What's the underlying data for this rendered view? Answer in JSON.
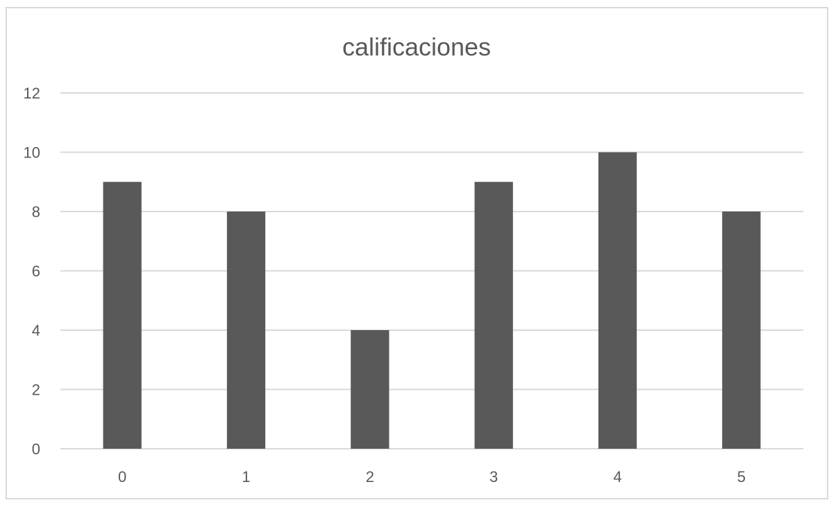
{
  "chart_data": {
    "type": "bar",
    "title": "calificaciones",
    "categories": [
      "0",
      "1",
      "2",
      "3",
      "4",
      "5"
    ],
    "values": [
      9,
      8,
      4,
      9,
      10,
      8
    ],
    "ylim": [
      0,
      12
    ],
    "yticks": [
      0,
      2,
      4,
      6,
      8,
      10,
      12
    ],
    "xlabel": "",
    "ylabel": "",
    "grid": true,
    "legend": "none",
    "bar_color": "#595959"
  }
}
